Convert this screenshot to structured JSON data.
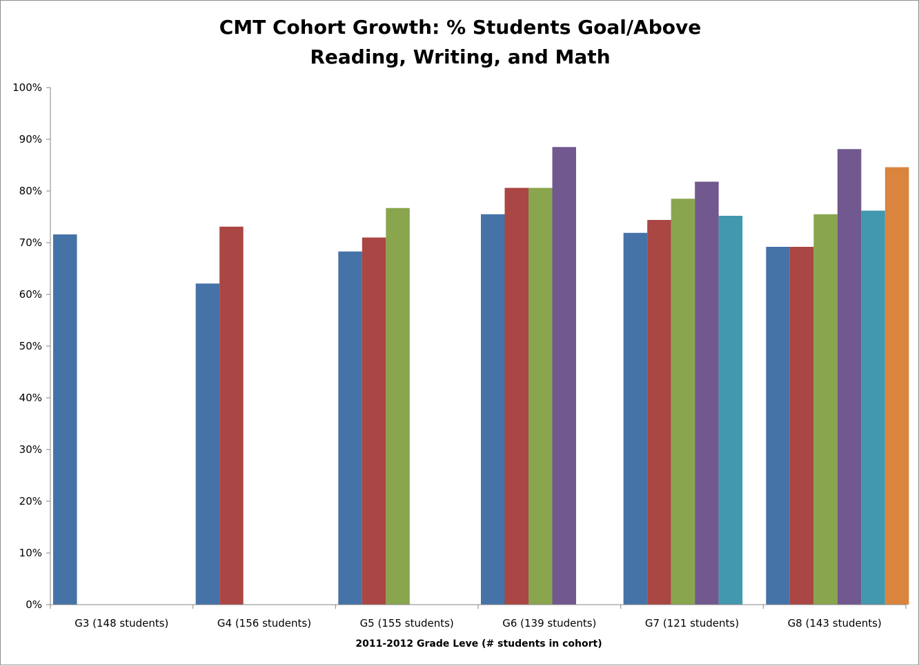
{
  "chart_data": {
    "type": "bar",
    "title": [
      "CMT Cohort Growth: % Students Goal/Above",
      "Reading, Writing, and Math"
    ],
    "xlabel": "2011-2012 Grade Leve (# students in cohort)",
    "ylabel": "",
    "ylim": [
      0,
      100
    ],
    "yticks": [
      "0%",
      "10%",
      "20%",
      "30%",
      "40%",
      "50%",
      "60%",
      "70%",
      "80%",
      "90%",
      "100%"
    ],
    "grid": false,
    "legend": "none",
    "categories": [
      "G3 (148 students)",
      "G4 (156 students)",
      "G5 (155 students)",
      "G6 (139 students)",
      "G7 (121 students)",
      "G8 (143 students)"
    ],
    "series": [
      {
        "color": "#4572a7",
        "values": [
          71.6,
          62.1,
          68.3,
          75.5,
          71.9,
          69.2
        ]
      },
      {
        "color": "#aa4643",
        "values": [
          null,
          73.1,
          71.0,
          80.6,
          74.4,
          69.2
        ]
      },
      {
        "color": "#89a54e",
        "values": [
          null,
          null,
          76.7,
          80.6,
          78.5,
          75.5
        ]
      },
      {
        "color": "#71588f",
        "values": [
          null,
          null,
          null,
          88.5,
          81.8,
          88.1
        ]
      },
      {
        "color": "#4198af",
        "values": [
          null,
          null,
          null,
          null,
          75.2,
          76.2
        ]
      },
      {
        "color": "#db843d",
        "values": [
          null,
          null,
          null,
          null,
          null,
          84.6
        ]
      }
    ]
  }
}
